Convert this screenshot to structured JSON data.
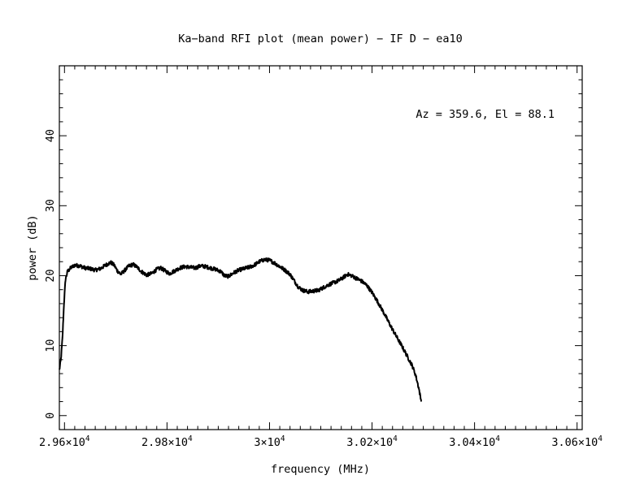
{
  "chart_data": {
    "type": "line",
    "title": "Ka−band RFI plot (mean power) − IF D − ea10",
    "xlabel": "frequency (MHz)",
    "ylabel": "power (dB)",
    "annotation": "Az = 359.6, El = 88.1",
    "xlim": [
      29590,
      30610
    ],
    "ylim": [
      -2,
      50
    ],
    "x_ticks": [
      {
        "value": 29600,
        "mantissa": "2.96",
        "sep": "×10",
        "exp": "4"
      },
      {
        "value": 29800,
        "mantissa": "2.98",
        "sep": "×10",
        "exp": "4"
      },
      {
        "value": 30000,
        "mantissa": "3",
        "sep": "×10",
        "exp": "4"
      },
      {
        "value": 30200,
        "mantissa": "3.02",
        "sep": "×10",
        "exp": "4"
      },
      {
        "value": 30400,
        "mantissa": "3.04",
        "sep": "×10",
        "exp": "4"
      },
      {
        "value": 30600,
        "mantissa": "3.06",
        "sep": "×10",
        "exp": "4"
      }
    ],
    "y_ticks": [
      {
        "value": 0,
        "label": "0"
      },
      {
        "value": 10,
        "label": "10"
      },
      {
        "value": 20,
        "label": "20"
      },
      {
        "value": 30,
        "label": "30"
      },
      {
        "value": 40,
        "label": "40"
      }
    ],
    "series": [
      {
        "values": [
          [
            29590,
            6.5
          ],
          [
            29593,
            8
          ],
          [
            29596,
            11
          ],
          [
            29599,
            16
          ],
          [
            29602,
            19.5
          ],
          [
            29606,
            20.6
          ],
          [
            29612,
            21.1
          ],
          [
            29620,
            21.5
          ],
          [
            29630,
            21.4
          ],
          [
            29640,
            21.1
          ],
          [
            29650,
            21.0
          ],
          [
            29660,
            20.8
          ],
          [
            29670,
            21.0
          ],
          [
            29680,
            21.5
          ],
          [
            29690,
            21.9
          ],
          [
            29697,
            21.5
          ],
          [
            29703,
            20.7
          ],
          [
            29710,
            20.2
          ],
          [
            29718,
            20.8
          ],
          [
            29726,
            21.4
          ],
          [
            29734,
            21.6
          ],
          [
            29742,
            21.2
          ],
          [
            29750,
            20.6
          ],
          [
            29760,
            20.1
          ],
          [
            29770,
            20.3
          ],
          [
            29780,
            20.9
          ],
          [
            29788,
            21.1
          ],
          [
            29796,
            20.7
          ],
          [
            29805,
            20.3
          ],
          [
            29815,
            20.7
          ],
          [
            29825,
            21.1
          ],
          [
            29835,
            21.3
          ],
          [
            29845,
            21.2
          ],
          [
            29855,
            21.1
          ],
          [
            29865,
            21.4
          ],
          [
            29875,
            21.3
          ],
          [
            29885,
            21.1
          ],
          [
            29895,
            20.9
          ],
          [
            29905,
            20.6
          ],
          [
            29912,
            20.0
          ],
          [
            29920,
            19.9
          ],
          [
            29930,
            20.4
          ],
          [
            29940,
            20.8
          ],
          [
            29950,
            21.0
          ],
          [
            29960,
            21.2
          ],
          [
            29970,
            21.5
          ],
          [
            29980,
            22.0
          ],
          [
            29990,
            22.3
          ],
          [
            30000,
            22.2
          ],
          [
            30010,
            21.8
          ],
          [
            30020,
            21.3
          ],
          [
            30030,
            20.8
          ],
          [
            30040,
            20.2
          ],
          [
            30048,
            19.3
          ],
          [
            30056,
            18.4
          ],
          [
            30065,
            17.9
          ],
          [
            30075,
            17.7
          ],
          [
            30085,
            17.8
          ],
          [
            30095,
            17.9
          ],
          [
            30105,
            18.3
          ],
          [
            30115,
            18.7
          ],
          [
            30125,
            19.0
          ],
          [
            30135,
            19.3
          ],
          [
            30145,
            19.8
          ],
          [
            30152,
            20.2
          ],
          [
            30160,
            20.0
          ],
          [
            30170,
            19.6
          ],
          [
            30180,
            19.2
          ],
          [
            30190,
            18.6
          ],
          [
            30200,
            17.6
          ],
          [
            30210,
            16.4
          ],
          [
            30220,
            15.1
          ],
          [
            30230,
            13.7
          ],
          [
            30240,
            12.3
          ],
          [
            30250,
            11.0
          ],
          [
            30260,
            9.7
          ],
          [
            30270,
            8.3
          ],
          [
            30278,
            7.2
          ],
          [
            30285,
            5.8
          ],
          [
            30291,
            4.0
          ],
          [
            30296,
            2.0
          ]
        ]
      }
    ],
    "grid": false,
    "color": "#000000"
  }
}
